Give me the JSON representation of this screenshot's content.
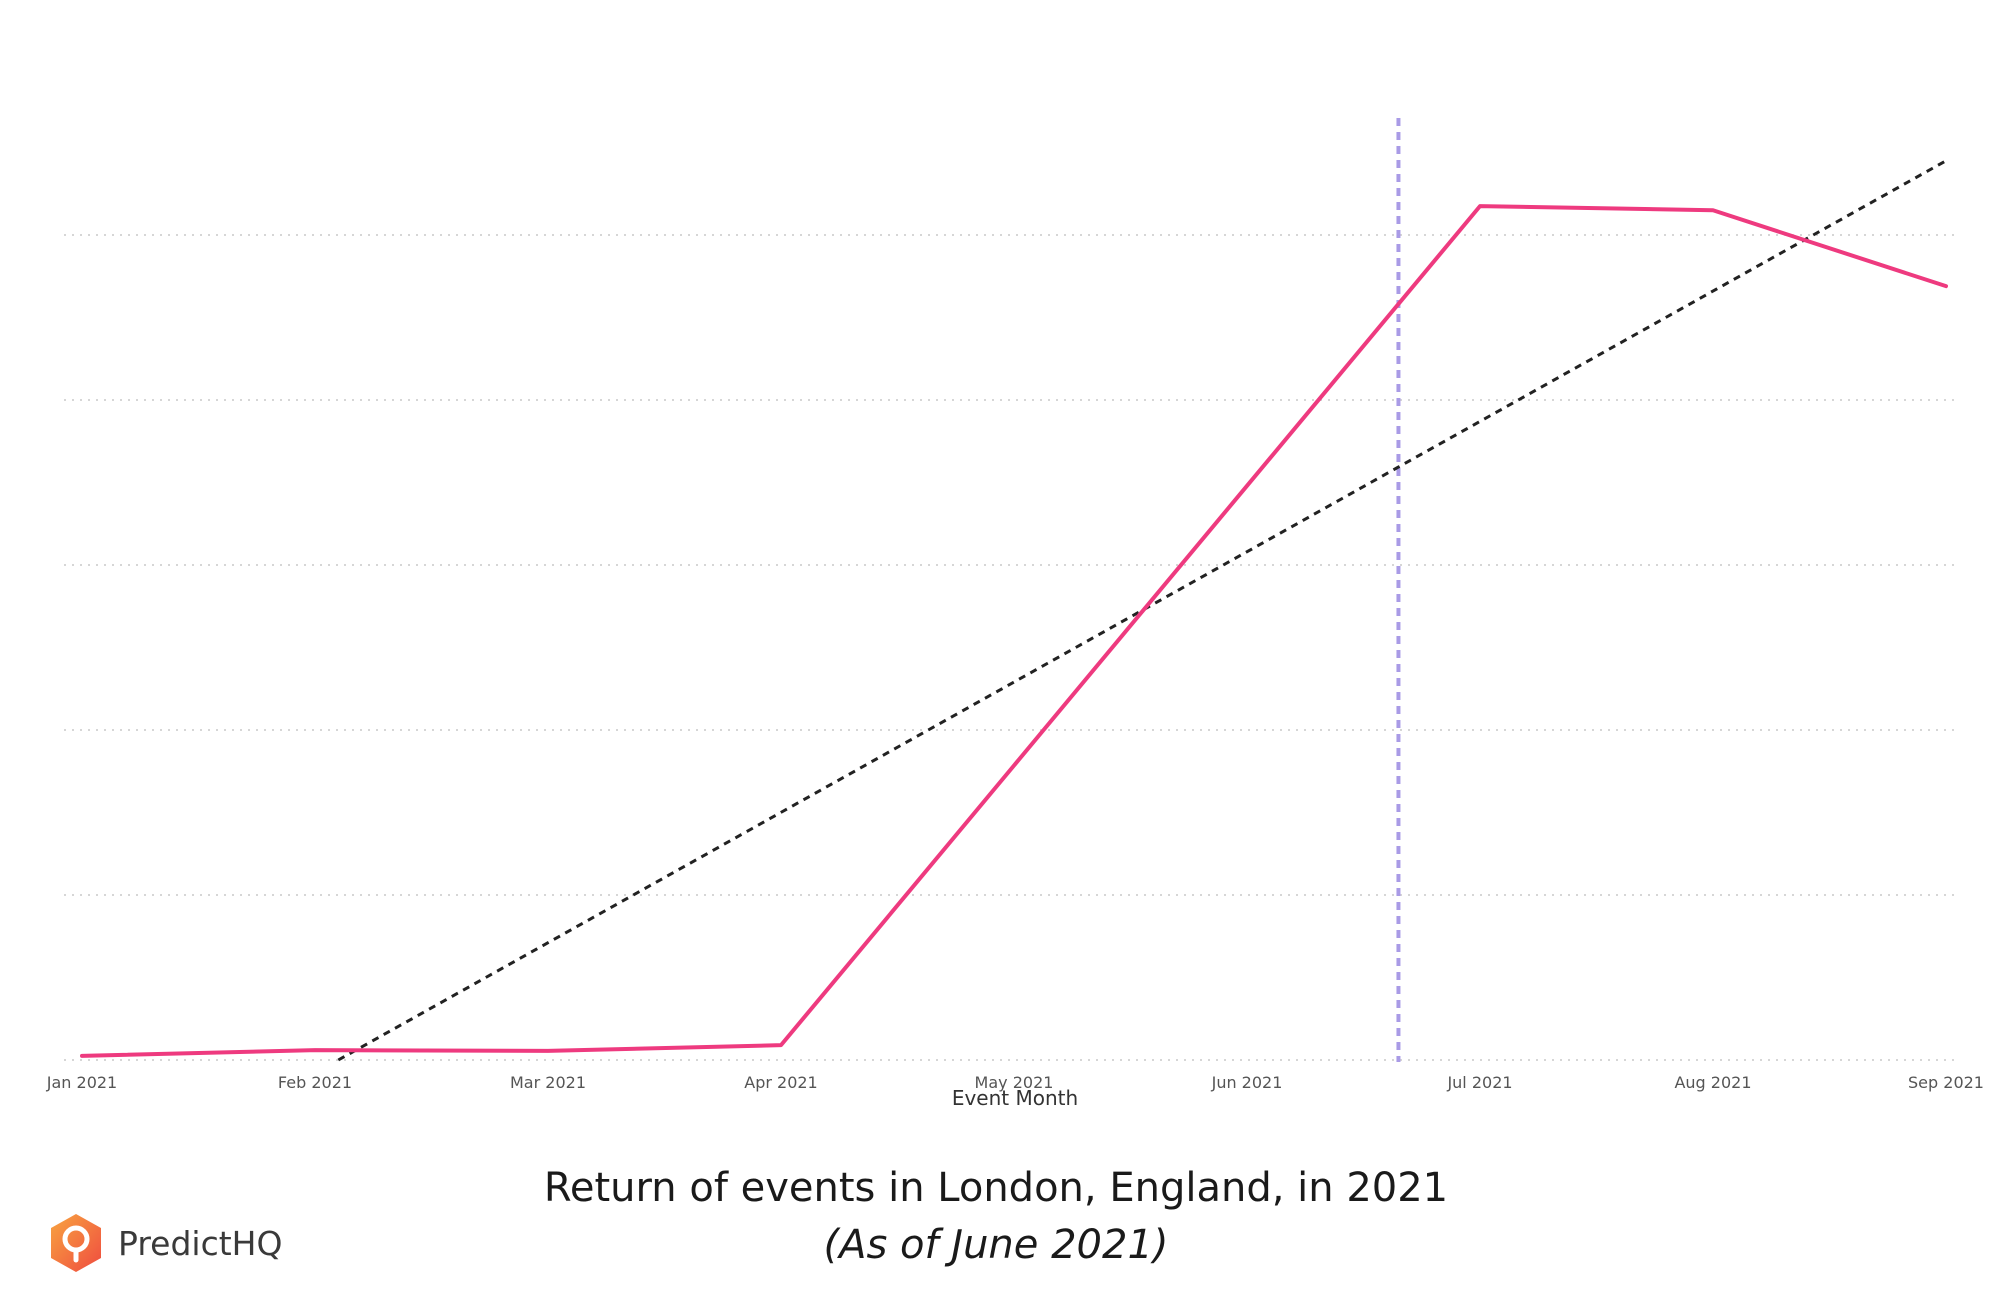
{
  "chart_data": {
    "type": "line",
    "xlabel": "Event Month",
    "categories": [
      "Jan 2021",
      "Feb 2021",
      "Mar 2021",
      "Apr 2021",
      "May 2021",
      "Jun 2021",
      "Jul 2021",
      "Aug 2021",
      "Sep 2021"
    ],
    "ylim": [
      0,
      1
    ],
    "grid": true,
    "series": [
      {
        "values": [
          0.005,
          0.012,
          0.011,
          0.018,
          null,
          null,
          1.035,
          1.03,
          0.938
        ],
        "color": "#ee3a7f"
      }
    ],
    "trend_line": {
      "from": [
        1.1,
        0
      ],
      "to": [
        8.0,
        1.09
      ],
      "color": "#222222",
      "style": "dashed"
    },
    "reference_line": {
      "x": 5.65,
      "color": "#a99be6",
      "style": "dashed"
    }
  },
  "caption": {
    "title": "Return of events in London, England, in 2021",
    "subtitle": "(As of June 2021)"
  },
  "brand": {
    "name": "PredictHQ",
    "logo_colors": [
      "#f8a541",
      "#ef4b3f"
    ]
  }
}
